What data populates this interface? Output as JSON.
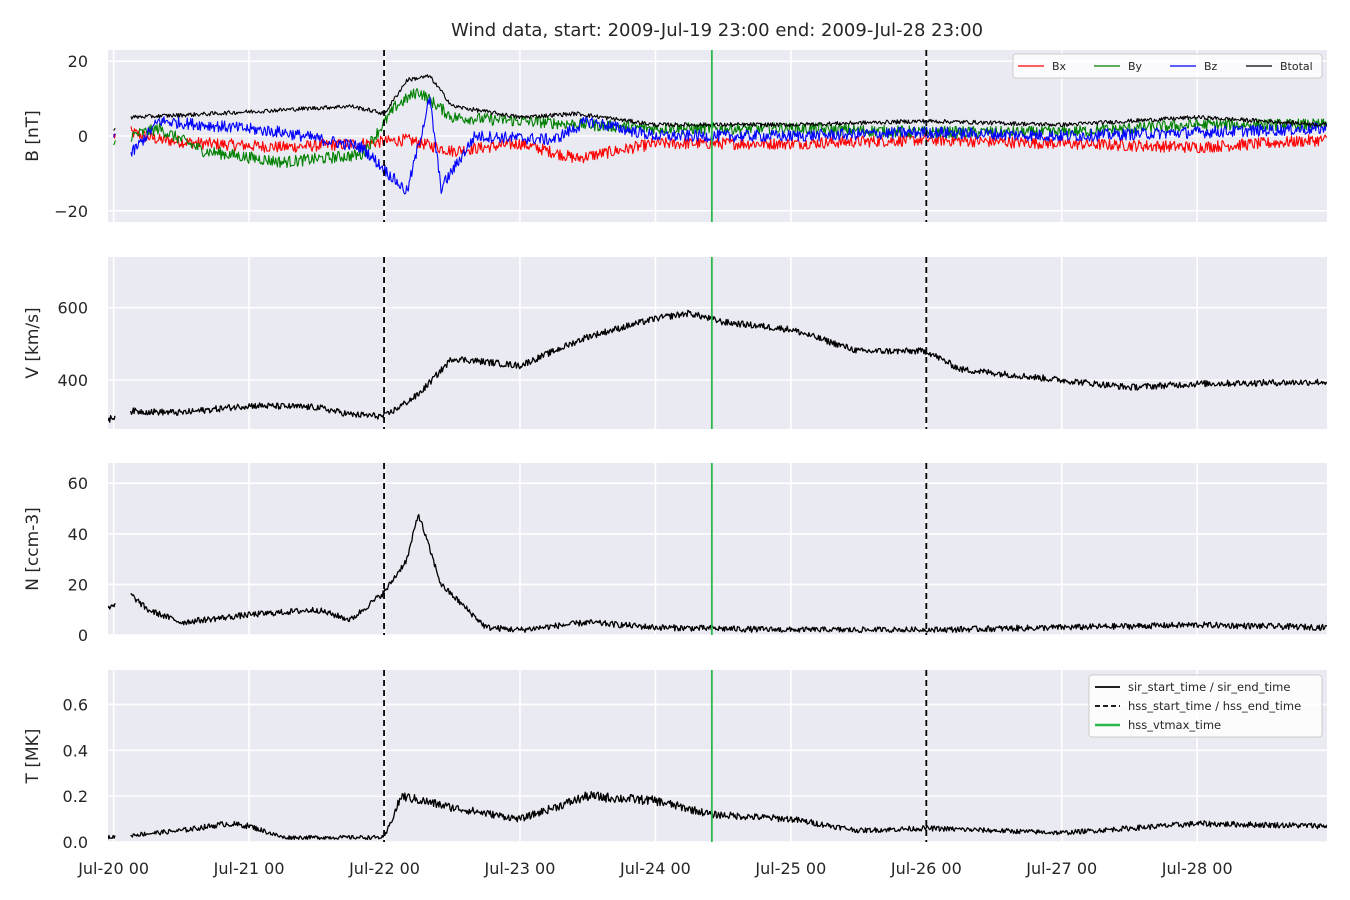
{
  "title": "Wind data, start: 2009-Jul-19 23:00  end: 2009-Jul-28 23:00",
  "colors": {
    "Bx": "#ff0000",
    "By": "#008000",
    "Bz": "#0000ff",
    "Btotal": "#000000",
    "black": "#000000",
    "hss_vtmax": "#2db84b",
    "panel_bg": "#eaeaf2",
    "grid": "#ffffff"
  },
  "xaxis": {
    "start": "2009-07-19 23:00",
    "end": "2009-07-28 23:00",
    "ticks": [
      {
        "t": "2009-07-20 00:00",
        "label": "Jul-20 00"
      },
      {
        "t": "2009-07-21 00:00",
        "label": "Jul-21 00"
      },
      {
        "t": "2009-07-22 00:00",
        "label": "Jul-22 00"
      },
      {
        "t": "2009-07-23 00:00",
        "label": "Jul-23 00"
      },
      {
        "t": "2009-07-24 00:00",
        "label": "Jul-24 00"
      },
      {
        "t": "2009-07-25 00:00",
        "label": "Jul-25 00"
      },
      {
        "t": "2009-07-26 00:00",
        "label": "Jul-26 00"
      },
      {
        "t": "2009-07-27 00:00",
        "label": "Jul-27 00"
      },
      {
        "t": "2009-07-28 00:00",
        "label": "Jul-28 00"
      }
    ]
  },
  "event_lines": {
    "hss_start_time": "2009-07-21 23:55",
    "hss_end_time": "2009-07-26 00:00",
    "hss_vtmax_time": "2009-07-24 10:00"
  },
  "legend_B": [
    "Bx",
    "By",
    "Bz",
    "Btotal"
  ],
  "legend_T": [
    {
      "label": "sir_start_time / sir_end_time",
      "style": "solid"
    },
    {
      "label": "hss_start_time / hss_end_time",
      "style": "dashed"
    },
    {
      "label": "hss_vtmax_time",
      "style": "green"
    }
  ],
  "chart_data": [
    {
      "type": "line",
      "ylabel": "B [nT]",
      "ylim": [
        -23,
        23
      ],
      "yticks": [
        {
          "v": -20,
          "label": "−20"
        },
        {
          "v": 0,
          "label": "0"
        },
        {
          "v": 20,
          "label": "20"
        }
      ],
      "grid": true,
      "legend": "top-right",
      "series": [
        {
          "name": "Bx",
          "points": [
            [
              "2009-07-20 00:00",
              0
            ],
            [
              "2009-07-20 03:00",
              1
            ],
            [
              "2009-07-20 08:00",
              -1
            ],
            [
              "2009-07-20 16:00",
              -2
            ],
            [
              "2009-07-21 06:00",
              -3
            ],
            [
              "2009-07-21 20:00",
              -2
            ],
            [
              "2009-07-22 04:00",
              -1
            ],
            [
              "2009-07-22 12:00",
              -4
            ],
            [
              "2009-07-23 00:00",
              -2
            ],
            [
              "2009-07-23 10:00",
              -6
            ],
            [
              "2009-07-24 00:00",
              -2
            ],
            [
              "2009-07-25 00:00",
              -2
            ],
            [
              "2009-07-26 00:00",
              -1
            ],
            [
              "2009-07-27 00:00",
              -2
            ],
            [
              "2009-07-28 00:00",
              -3
            ],
            [
              "2009-07-28 23:00",
              -1
            ]
          ]
        },
        {
          "name": "By",
          "points": [
            [
              "2009-07-20 00:00",
              -2
            ],
            [
              "2009-07-20 03:00",
              0
            ],
            [
              "2009-07-20 08:00",
              2
            ],
            [
              "2009-07-20 16:00",
              -4
            ],
            [
              "2009-07-21 06:00",
              -7
            ],
            [
              "2009-07-21 20:00",
              -5
            ],
            [
              "2009-07-22 02:00",
              8
            ],
            [
              "2009-07-22 06:00",
              12
            ],
            [
              "2009-07-22 12:00",
              5
            ],
            [
              "2009-07-23 00:00",
              4
            ],
            [
              "2009-07-23 12:00",
              3
            ],
            [
              "2009-07-24 00:00",
              2
            ],
            [
              "2009-07-25 00:00",
              2
            ],
            [
              "2009-07-26 00:00",
              1
            ],
            [
              "2009-07-27 00:00",
              1
            ],
            [
              "2009-07-28 00:00",
              3
            ],
            [
              "2009-07-28 23:00",
              3
            ]
          ]
        },
        {
          "name": "Bz",
          "points": [
            [
              "2009-07-20 00:00",
              1
            ],
            [
              "2009-07-20 03:00",
              -5
            ],
            [
              "2009-07-20 08:00",
              4
            ],
            [
              "2009-07-20 16:00",
              3
            ],
            [
              "2009-07-21 06:00",
              1
            ],
            [
              "2009-07-21 20:00",
              -3
            ],
            [
              "2009-07-22 04:00",
              -15
            ],
            [
              "2009-07-22 08:00",
              10
            ],
            [
              "2009-07-22 10:00",
              -14
            ],
            [
              "2009-07-22 16:00",
              0
            ],
            [
              "2009-07-23 06:00",
              -1
            ],
            [
              "2009-07-23 12:00",
              4
            ],
            [
              "2009-07-24 00:00",
              0
            ],
            [
              "2009-07-25 00:00",
              0
            ],
            [
              "2009-07-26 00:00",
              1
            ],
            [
              "2009-07-27 00:00",
              0
            ],
            [
              "2009-07-28 00:00",
              1
            ],
            [
              "2009-07-28 23:00",
              2
            ]
          ]
        },
        {
          "name": "Btotal",
          "points": [
            [
              "2009-07-20 00:00",
              2
            ],
            [
              "2009-07-20 03:00",
              5
            ],
            [
              "2009-07-20 18:00",
              6
            ],
            [
              "2009-07-21 06:00",
              7
            ],
            [
              "2009-07-21 18:00",
              8
            ],
            [
              "2009-07-22 00:00",
              6
            ],
            [
              "2009-07-22 04:00",
              15
            ],
            [
              "2009-07-22 08:00",
              16
            ],
            [
              "2009-07-22 12:00",
              8
            ],
            [
              "2009-07-23 00:00",
              5
            ],
            [
              "2009-07-23 10:00",
              6
            ],
            [
              "2009-07-24 00:00",
              3
            ],
            [
              "2009-07-25 00:00",
              3
            ],
            [
              "2009-07-26 00:00",
              4
            ],
            [
              "2009-07-27 00:00",
              3
            ],
            [
              "2009-07-28 00:00",
              5
            ],
            [
              "2009-07-28 23:00",
              3
            ]
          ]
        }
      ]
    },
    {
      "type": "line",
      "ylabel": "V [km/s]",
      "ylim": [
        265,
        740
      ],
      "yticks": [
        {
          "v": 400,
          "label": "400"
        },
        {
          "v": 600,
          "label": "600"
        }
      ],
      "grid": true,
      "series": [
        {
          "points": [
            [
              "2009-07-19 23:00",
              290
            ],
            [
              "2009-07-20 02:00",
              315
            ],
            [
              "2009-07-20 12:00",
              310
            ],
            [
              "2009-07-21 00:00",
              330
            ],
            [
              "2009-07-21 12:00",
              325
            ],
            [
              "2009-07-21 18:00",
              305
            ],
            [
              "2009-07-22 00:00",
              300
            ],
            [
              "2009-07-22 06:00",
              360
            ],
            [
              "2009-07-22 12:00",
              460
            ],
            [
              "2009-07-23 00:00",
              440
            ],
            [
              "2009-07-23 12:00",
              520
            ],
            [
              "2009-07-24 00:00",
              570
            ],
            [
              "2009-07-24 06:00",
              585
            ],
            [
              "2009-07-24 12:00",
              560
            ],
            [
              "2009-07-25 00:00",
              540
            ],
            [
              "2009-07-25 12:00",
              480
            ],
            [
              "2009-07-26 00:00",
              480
            ],
            [
              "2009-07-26 06:00",
              430
            ],
            [
              "2009-07-27 00:00",
              400
            ],
            [
              "2009-07-27 12:00",
              380
            ],
            [
              "2009-07-28 00:00",
              390
            ],
            [
              "2009-07-28 23:00",
              395
            ]
          ]
        }
      ]
    },
    {
      "type": "line",
      "ylabel": "N [ccm-3]",
      "ylim": [
        0,
        68
      ],
      "yticks": [
        {
          "v": 0,
          "label": "0"
        },
        {
          "v": 20,
          "label": "20"
        },
        {
          "v": 40,
          "label": "40"
        },
        {
          "v": 60,
          "label": "60"
        }
      ],
      "grid": true,
      "series": [
        {
          "points": [
            [
              "2009-07-19 23:00",
              10
            ],
            [
              "2009-07-20 03:00",
              16
            ],
            [
              "2009-07-20 06:00",
              10
            ],
            [
              "2009-07-20 12:00",
              5
            ],
            [
              "2009-07-21 00:00",
              8
            ],
            [
              "2009-07-21 12:00",
              10
            ],
            [
              "2009-07-21 18:00",
              6
            ],
            [
              "2009-07-22 00:00",
              17
            ],
            [
              "2009-07-22 04:00",
              30
            ],
            [
              "2009-07-22 06:00",
              48
            ],
            [
              "2009-07-22 10:00",
              20
            ],
            [
              "2009-07-22 18:00",
              3
            ],
            [
              "2009-07-23 00:00",
              2
            ],
            [
              "2009-07-23 12:00",
              5
            ],
            [
              "2009-07-24 00:00",
              3
            ],
            [
              "2009-07-25 00:00",
              2
            ],
            [
              "2009-07-26 00:00",
              2
            ],
            [
              "2009-07-27 00:00",
              3
            ],
            [
              "2009-07-28 00:00",
              4
            ],
            [
              "2009-07-28 23:00",
              3
            ]
          ]
        }
      ]
    },
    {
      "type": "line",
      "ylabel": "T [MK]",
      "ylim": [
        0,
        0.75
      ],
      "yticks": [
        {
          "v": 0,
          "label": "0.0"
        },
        {
          "v": 0.2,
          "label": "0.2"
        },
        {
          "v": 0.4,
          "label": "0.4"
        },
        {
          "v": 0.6,
          "label": "0.6"
        }
      ],
      "grid": true,
      "legend": "top-right",
      "series": [
        {
          "points": [
            [
              "2009-07-19 23:00",
              0.02
            ],
            [
              "2009-07-20 03:00",
              0.03
            ],
            [
              "2009-07-20 12:00",
              0.05
            ],
            [
              "2009-07-20 20:00",
              0.08
            ],
            [
              "2009-07-21 00:00",
              0.07
            ],
            [
              "2009-07-21 06:00",
              0.02
            ],
            [
              "2009-07-22 00:00",
              0.02
            ],
            [
              "2009-07-22 03:00",
              0.2
            ],
            [
              "2009-07-22 12:00",
              0.15
            ],
            [
              "2009-07-23 00:00",
              0.1
            ],
            [
              "2009-07-23 12:00",
              0.2
            ],
            [
              "2009-07-24 00:00",
              0.18
            ],
            [
              "2009-07-24 10:00",
              0.12
            ],
            [
              "2009-07-25 00:00",
              0.1
            ],
            [
              "2009-07-25 12:00",
              0.05
            ],
            [
              "2009-07-26 00:00",
              0.06
            ],
            [
              "2009-07-27 00:00",
              0.04
            ],
            [
              "2009-07-28 00:00",
              0.08
            ],
            [
              "2009-07-28 23:00",
              0.07
            ]
          ]
        }
      ]
    }
  ]
}
